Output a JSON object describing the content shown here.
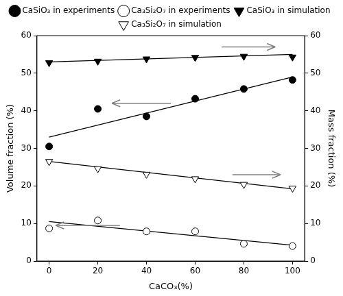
{
  "chart_data": {
    "type": "scatter",
    "x_label": "CaCO₃(%)",
    "y_label": "Volume fraction (%)",
    "y2_label": "Mass fraction (%)",
    "xlim": [
      -5,
      105
    ],
    "xticks": [
      0,
      20,
      40,
      60,
      80,
      100
    ],
    "ylim": [
      0,
      60
    ],
    "yticks": [
      0,
      10,
      20,
      30,
      40,
      50,
      60
    ],
    "y2lim": [
      0,
      60
    ],
    "y2ticks": [
      0,
      10,
      20,
      30,
      40,
      50,
      60
    ],
    "grid": false,
    "legend": "top",
    "x": [
      0,
      20,
      40,
      60,
      80,
      100
    ],
    "trend_x": [
      0,
      100
    ],
    "series": [
      {
        "name": "CaSiO₃ in experiments",
        "color": "#000000",
        "marker": "filled-circle",
        "axis": "y",
        "values": [
          30.5,
          40.5,
          38.5,
          43.2,
          45.8,
          48.2
        ],
        "trend": [
          33,
          49
        ]
      },
      {
        "name": "Ca₃Si₂O₇ in experiments",
        "color": "#000000",
        "marker": "open-circle",
        "axis": "y",
        "values": [
          8.7,
          10.8,
          7.9,
          7.9,
          4.6,
          4.0
        ],
        "trend": [
          10.5,
          4.2
        ]
      },
      {
        "name": "CaSiO₃ in simulation",
        "color": "#000000",
        "marker": "filled-triangle-down",
        "axis": "y2",
        "values": [
          52.8,
          53.2,
          53.8,
          54.2,
          54.5,
          54.3
        ],
        "trend": [
          53,
          55
        ]
      },
      {
        "name": "Ca₃Si₂O₇ in simulation",
        "color": "#000000",
        "marker": "open-triangle-down",
        "axis": "y2",
        "values": [
          26.5,
          24.6,
          23.1,
          21.9,
          20.4,
          19.4
        ],
        "trend": [
          26.5,
          19.2
        ]
      }
    ]
  }
}
